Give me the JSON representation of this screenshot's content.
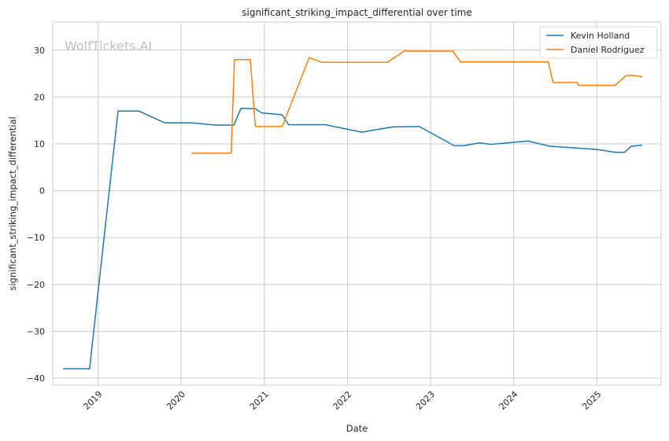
{
  "chart_data": {
    "type": "line",
    "title": "significant_striking_impact_differential over time",
    "xlabel": "Date",
    "ylabel": "significant_striking_impact_differential",
    "watermark": "WolfTickets.AI",
    "x_ticks": [
      "2019",
      "2020",
      "2021",
      "2022",
      "2023",
      "2024",
      "2025"
    ],
    "y_ticks": [
      "−40",
      "−30",
      "−20",
      "−10",
      "0",
      "10",
      "20",
      "30"
    ],
    "y_tick_values": [
      -40,
      -30,
      -20,
      -10,
      0,
      10,
      20,
      30
    ],
    "xlim": [
      "2018-06-16",
      "2025-10-10"
    ],
    "ylim": [
      -41.5,
      36
    ],
    "grid": true,
    "legend_position": "top-right",
    "series": [
      {
        "name": "Kevin Holland",
        "color": "#1f77b4",
        "points": [
          [
            "2018-08-01",
            -38
          ],
          [
            "2018-11-25",
            -38
          ],
          [
            "2019-03-30",
            17
          ],
          [
            "2019-06-30",
            17
          ],
          [
            "2019-10-20",
            14.5
          ],
          [
            "2020-02-15",
            14.5
          ],
          [
            "2020-05-30",
            14
          ],
          [
            "2020-08-20",
            14
          ],
          [
            "2020-09-20",
            17.6
          ],
          [
            "2020-11-21",
            17.5
          ],
          [
            "2020-12-20",
            16.6
          ],
          [
            "2021-03-20",
            16.2
          ],
          [
            "2021-04-17",
            14.1
          ],
          [
            "2021-09-25",
            14.1
          ],
          [
            "2022-03-05",
            12.5
          ],
          [
            "2022-07-16",
            13.6
          ],
          [
            "2022-11-12",
            13.7
          ],
          [
            "2023-04-15",
            9.6
          ],
          [
            "2023-05-25",
            9.6
          ],
          [
            "2023-08-05",
            10.2
          ],
          [
            "2023-09-23",
            9.9
          ],
          [
            "2024-03-02",
            10.6
          ],
          [
            "2024-06-08",
            9.5
          ],
          [
            "2025-01-01",
            8.8
          ],
          [
            "2025-03-22",
            8.2
          ],
          [
            "2025-05-03",
            8.2
          ],
          [
            "2025-06-01",
            9.5
          ],
          [
            "2025-07-19",
            9.7
          ]
        ]
      },
      {
        "name": "Daniel Rodriguez",
        "color": "#ff7f0e",
        "points": [
          [
            "2020-02-15",
            8
          ],
          [
            "2020-08-08",
            8
          ],
          [
            "2020-08-22",
            28
          ],
          [
            "2020-10-31",
            28
          ],
          [
            "2020-11-22",
            13.7
          ],
          [
            "2021-03-20",
            13.7
          ],
          [
            "2021-07-17",
            28.4
          ],
          [
            "2021-09-11",
            27.4
          ],
          [
            "2022-06-25",
            27.4
          ],
          [
            "2022-09-10",
            29.9
          ],
          [
            "2022-10-01",
            29.8
          ],
          [
            "2023-04-08",
            29.8
          ],
          [
            "2023-05-13",
            27.5
          ],
          [
            "2024-06-01",
            27.5
          ],
          [
            "2024-06-22",
            23.1
          ],
          [
            "2024-10-05",
            23.1
          ],
          [
            "2024-10-12",
            22.5
          ],
          [
            "2025-03-22",
            22.5
          ],
          [
            "2025-05-10",
            24.6
          ],
          [
            "2025-06-14",
            24.6
          ],
          [
            "2025-07-19",
            24.3
          ]
        ]
      }
    ]
  }
}
